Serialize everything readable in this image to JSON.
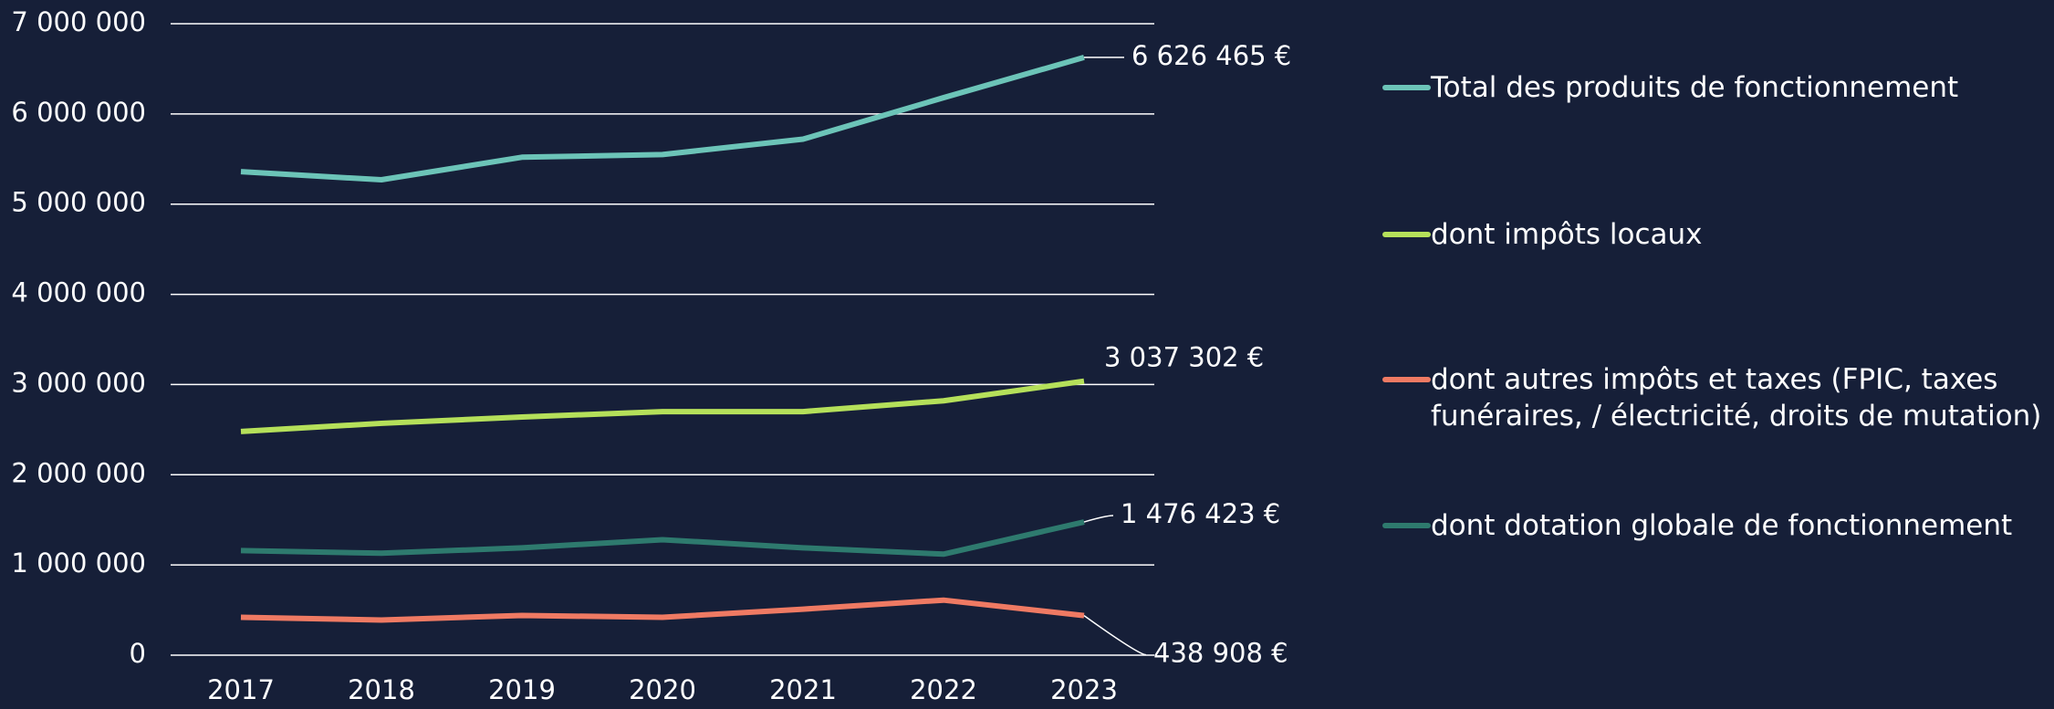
{
  "chart_data": {
    "type": "line",
    "categories": [
      "2017",
      "2018",
      "2019",
      "2020",
      "2021",
      "2022",
      "2023"
    ],
    "series": [
      {
        "name": "Total des produits de fonctionnement",
        "color": "#6cc4b8",
        "values": [
          5360000,
          5270000,
          5520000,
          5550000,
          5720000,
          6180000,
          6626465
        ],
        "value_labels": [
          null,
          null,
          null,
          null,
          null,
          null,
          "6 626 465 €"
        ]
      },
      {
        "name": "dont impôts locaux",
        "color": "#b5e05a",
        "values": [
          2480000,
          2570000,
          2640000,
          2700000,
          2700000,
          2820000,
          3037302
        ],
        "value_labels": [
          null,
          null,
          null,
          null,
          null,
          null,
          "3 037 302 €"
        ]
      },
      {
        "name": "dont autres impôts et taxes (FPIC, taxes funéraires, / électricité, droits de mutation)",
        "color": "#ef7a63",
        "values": [
          420000,
          390000,
          440000,
          420000,
          510000,
          610000,
          438908
        ],
        "value_labels": [
          null,
          null,
          null,
          null,
          null,
          null,
          "438 908 €"
        ]
      },
      {
        "name": "dont dotation globale de fonctionnement",
        "color": "#2e7a6e",
        "values": [
          1160000,
          1130000,
          1190000,
          1280000,
          1190000,
          1120000,
          1476423
        ],
        "value_labels": [
          null,
          null,
          null,
          null,
          null,
          null,
          "1 476 423 €"
        ]
      }
    ],
    "ylim": [
      0,
      7000000
    ],
    "yticks": [
      0,
      {
        "value": 1000000,
        "label": "1 000 000"
      },
      {
        "value": 2000000,
        "label": "2 000 000"
      },
      {
        "value": 3000000,
        "label": "3 000 000"
      },
      {
        "value": 4000000,
        "label": "4 000 000"
      },
      {
        "value": 5000000,
        "label": "5 000 000"
      },
      {
        "value": 6000000,
        "label": "6 000 000"
      },
      {
        "value": 7000000,
        "label": "7 000 000"
      }
    ],
    "grid": true,
    "legend": "right"
  }
}
